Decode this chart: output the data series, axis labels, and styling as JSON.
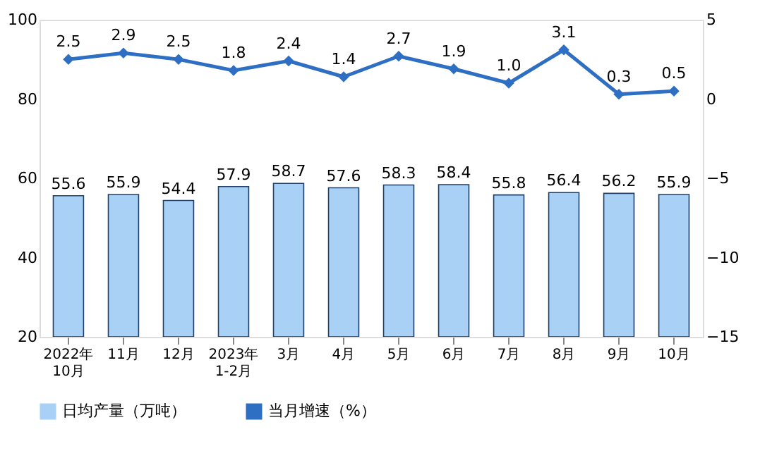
{
  "chart_data": {
    "type": "bar",
    "categories": [
      "2022年\n10月",
      "11月",
      "12月",
      "2023年\n1-2月",
      "3月",
      "4月",
      "5月",
      "6月",
      "7月",
      "8月",
      "9月",
      "10月"
    ],
    "series": [
      {
        "name": "日均产量（万吨）",
        "color": "#a9d0f5",
        "values": [
          55.6,
          55.9,
          54.4,
          57.9,
          58.7,
          57.6,
          58.3,
          58.4,
          55.8,
          56.4,
          56.2,
          55.9
        ],
        "value_labels": [
          "55.6",
          "55.9",
          "54.4",
          "57.9",
          "58.7",
          "57.6",
          "58.3",
          "58.4",
          "55.8",
          "56.4",
          "56.2",
          "55.9"
        ]
      },
      {
        "name": "当月增速（%）",
        "type": "line",
        "axis": "y2",
        "color": "#2e6fc4",
        "values": [
          2.5,
          2.9,
          2.5,
          1.8,
          2.4,
          1.4,
          2.7,
          1.9,
          1.0,
          3.1,
          0.3,
          0.5
        ],
        "value_labels": [
          "2.5",
          "2.9",
          "2.5",
          "1.8",
          "2.4",
          "1.4",
          "2.7",
          "1.9",
          "1.0",
          "3.1",
          "0.3",
          "0.5"
        ]
      }
    ],
    "ylim": [
      20,
      100
    ],
    "yticks": [
      20,
      40,
      60,
      80,
      100
    ],
    "y2lim": [
      -15,
      5
    ],
    "y2ticks": [
      -15,
      -10,
      -5,
      0,
      5
    ],
    "legend": "bottom",
    "marker": "diamond",
    "line_style": "solid"
  }
}
